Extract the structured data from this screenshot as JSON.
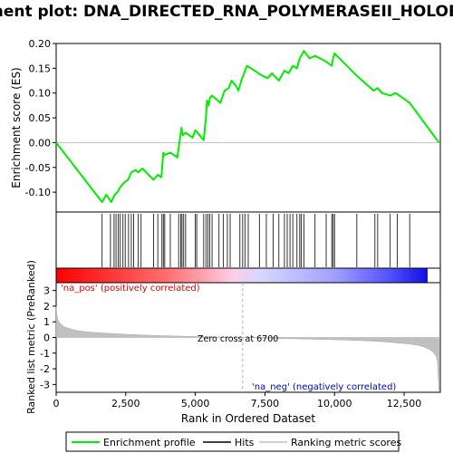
{
  "title": "Enrichment plot: DNA_DIRECTED_RNA_POLYMERASEII_HOLOENZYME",
  "colors": {
    "enrichment_line": "#00ee00",
    "hit_line": "#000000",
    "metric_fill": "#c0c0c0",
    "zero_cross_line": "#b0b0b0",
    "pos_label": "#dd0000",
    "neg_label": "#0000cc",
    "bar_pos": "#ff0000",
    "bar_neg": "#0000ff"
  },
  "chart_data": [
    {
      "type": "line",
      "name": "enrichment",
      "ylabel": "Enrichment score (ES)",
      "xlim": [
        0,
        13800
      ],
      "ylim": [
        -0.14,
        0.2
      ],
      "yticks": [
        "0.20",
        "0.15",
        "0.10",
        "0.05",
        "0.00",
        "-0.05",
        "-0.10"
      ],
      "ytick_values": [
        0.2,
        0.15,
        0.1,
        0.05,
        0.0,
        -0.05,
        -0.1
      ],
      "grid": false,
      "series": [
        {
          "name": "Enrichment profile",
          "x": [
            0,
            1650,
            1800,
            1980,
            2100,
            2200,
            2300,
            2450,
            2580,
            2700,
            2850,
            2950,
            3100,
            3500,
            3650,
            3780,
            3850,
            3900,
            4100,
            4350,
            4500,
            4550,
            4650,
            4900,
            5000,
            5300,
            5380,
            5420,
            5480,
            5520,
            5600,
            5900,
            6050,
            6200,
            6300,
            6450,
            6550,
            6650,
            6750,
            6850,
            7000,
            7400,
            7600,
            7750,
            8000,
            8200,
            8350,
            8500,
            8650,
            8750,
            8800,
            8900,
            9100,
            9300,
            9650,
            9900,
            9950,
            10000,
            10800,
            11400,
            11550,
            11700,
            12000,
            12200,
            12700,
            13750
          ],
          "values": [
            0.0,
            -0.12,
            -0.105,
            -0.12,
            -0.105,
            -0.1,
            -0.09,
            -0.08,
            -0.075,
            -0.06,
            -0.055,
            -0.06,
            -0.052,
            -0.075,
            -0.065,
            -0.07,
            -0.02,
            -0.025,
            -0.02,
            -0.03,
            0.03,
            0.015,
            0.02,
            0.01,
            0.025,
            0.005,
            0.05,
            0.085,
            0.075,
            0.09,
            0.095,
            0.08,
            0.105,
            0.11,
            0.125,
            0.115,
            0.105,
            0.125,
            0.14,
            0.155,
            0.15,
            0.135,
            0.13,
            0.14,
            0.125,
            0.145,
            0.14,
            0.155,
            0.15,
            0.17,
            0.175,
            0.185,
            0.17,
            0.175,
            0.165,
            0.155,
            0.17,
            0.18,
            0.135,
            0.105,
            0.11,
            0.1,
            0.095,
            0.1,
            0.08,
            0.0
          ]
        }
      ]
    },
    {
      "type": "scatter",
      "name": "hits",
      "xlim": [
        0,
        13800
      ],
      "x": [
        1650,
        1950,
        2080,
        2150,
        2230,
        2300,
        2400,
        2480,
        2600,
        2700,
        2780,
        2950,
        3050,
        3500,
        3650,
        3800,
        3850,
        3900,
        4100,
        4400,
        4480,
        4520,
        4580,
        4650,
        5000,
        5050,
        5300,
        5380,
        5450,
        5520,
        5600,
        5850,
        6000,
        6150,
        6250,
        6600,
        6700,
        6780,
        6900,
        7300,
        7550,
        7800,
        8000,
        8200,
        8300,
        8400,
        8500,
        8650,
        8750,
        8800,
        8900,
        9300,
        9700,
        9900,
        9950,
        10000,
        10800,
        11450,
        11550,
        12000,
        12250,
        12700
      ]
    },
    {
      "type": "area",
      "name": "ranked_metric",
      "xlabel": "Rank in Ordered Dataset",
      "ylabel": "Ranked list metric (PreRanked)",
      "xlim": [
        0,
        13800
      ],
      "ylim": [
        -3.5,
        3.5
      ],
      "xticks": [
        "0",
        "2,500",
        "5,000",
        "7,500",
        "10,000",
        "12,500"
      ],
      "xtick_values": [
        0,
        2500,
        5000,
        7500,
        10000,
        12500
      ],
      "yticks": [
        "3",
        "2",
        "1",
        "0",
        "-1",
        "-2",
        "-3"
      ],
      "ytick_values": [
        3,
        2,
        1,
        0,
        -1,
        -2,
        -3
      ],
      "x": [
        0,
        20,
        60,
        120,
        200,
        300,
        450,
        650,
        900,
        1300,
        1800,
        2500,
        3500,
        4500,
        5500,
        6700,
        7500,
        8500,
        9500,
        10500,
        11200,
        11800,
        12300,
        12700,
        13000,
        13200,
        13400,
        13550,
        13650,
        13700,
        13750
      ],
      "values": [
        2.0,
        1.5,
        1.15,
        0.95,
        0.8,
        0.68,
        0.58,
        0.48,
        0.4,
        0.33,
        0.27,
        0.2,
        0.13,
        0.08,
        0.04,
        0.0,
        -0.04,
        -0.08,
        -0.12,
        -0.17,
        -0.22,
        -0.28,
        -0.35,
        -0.42,
        -0.5,
        -0.6,
        -0.75,
        -0.95,
        -1.2,
        -1.6,
        -3.4
      ],
      "zero_cross_rank": 6700,
      "zero_cross_label": "Zero cross at 6700",
      "pos_label": "'na_pos' (positively correlated)",
      "neg_label": "'na_neg' (negatively correlated)"
    }
  ],
  "legend": {
    "items": [
      "Enrichment profile",
      "Hits",
      "Ranking metric scores"
    ]
  }
}
